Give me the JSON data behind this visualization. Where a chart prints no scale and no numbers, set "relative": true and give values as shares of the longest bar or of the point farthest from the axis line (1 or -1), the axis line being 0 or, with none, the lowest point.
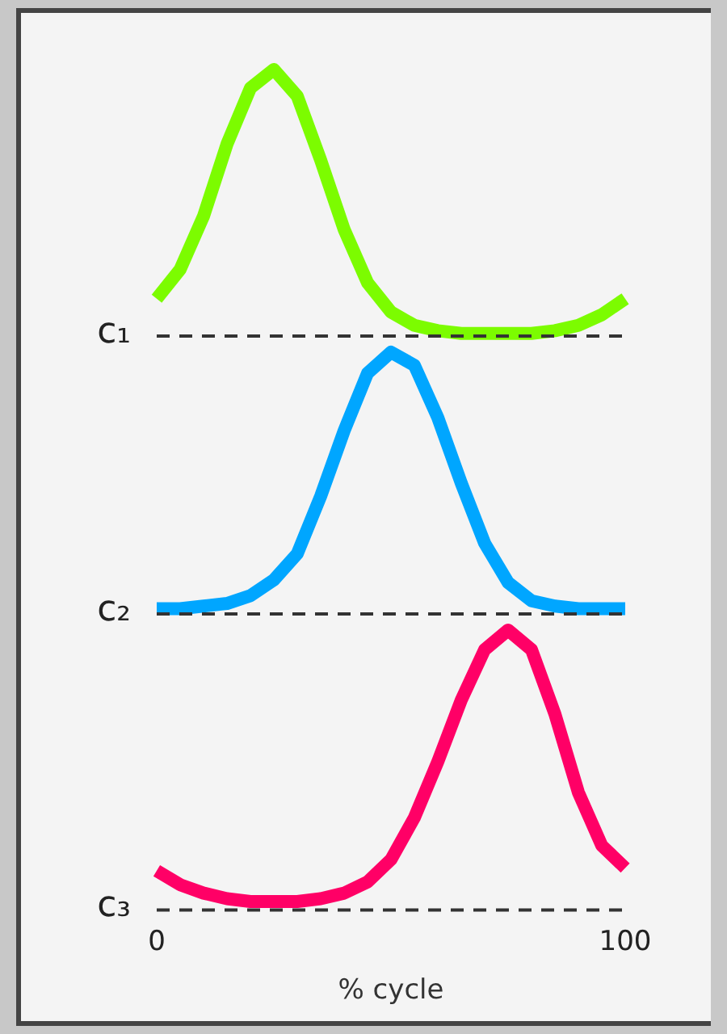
{
  "chart_data": [
    {
      "type": "line",
      "relative": true,
      "ylabel": "c₁",
      "tick_labels": false,
      "categories": [
        null,
        null,
        null,
        null,
        null,
        null,
        null,
        null,
        null,
        null,
        null,
        null,
        null,
        null,
        null,
        null,
        null,
        null,
        null,
        null,
        null
      ],
      "series": [
        {
          "color": "#7cfc00",
          "values": [
            0.14,
            0.25,
            0.45,
            0.72,
            0.93,
            1.0,
            0.9,
            0.66,
            0.4,
            0.2,
            0.09,
            0.04,
            0.02,
            0.01,
            0.01,
            0.01,
            0.01,
            0.02,
            0.04,
            0.08,
            0.14
          ]
        }
      ]
    },
    {
      "type": "line",
      "relative": true,
      "ylabel": "c₂",
      "tick_labels": false,
      "categories": [
        null,
        null,
        null,
        null,
        null,
        null,
        null,
        null,
        null,
        null,
        null,
        null,
        null,
        null,
        null,
        null,
        null,
        null,
        null,
        null,
        null
      ],
      "series": [
        {
          "color": "#00a6ff",
          "values": [
            0.02,
            0.02,
            0.03,
            0.04,
            0.07,
            0.13,
            0.23,
            0.45,
            0.7,
            0.92,
            1.0,
            0.95,
            0.75,
            0.5,
            0.27,
            0.12,
            0.05,
            0.03,
            0.02,
            0.02,
            0.02
          ]
        }
      ]
    },
    {
      "type": "line",
      "relative": true,
      "ylabel": "c₃",
      "xlim": [
        0,
        100
      ],
      "xticks": [
        0,
        100
      ],
      "xlabel": "% cycle",
      "tick_labels": "x",
      "series": [
        {
          "color": "#ff0066",
          "x": [
            0,
            5,
            10,
            15,
            20,
            25,
            30,
            35,
            40,
            45,
            50,
            55,
            60,
            65,
            70,
            75,
            80,
            85,
            90,
            95,
            100
          ],
          "values": [
            0.14,
            0.09,
            0.06,
            0.04,
            0.03,
            0.03,
            0.03,
            0.04,
            0.06,
            0.1,
            0.18,
            0.33,
            0.53,
            0.75,
            0.93,
            1.0,
            0.93,
            0.7,
            0.42,
            0.23,
            0.15
          ]
        }
      ]
    }
  ]
}
